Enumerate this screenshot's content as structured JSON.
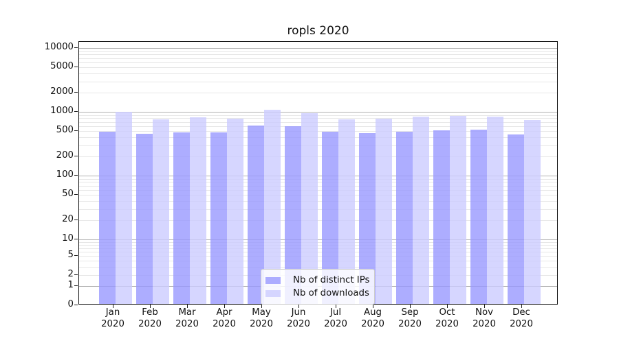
{
  "title": "ropls 2020",
  "chart_data": {
    "type": "bar",
    "title": "ropls 2020",
    "categories": [
      "Jan 2020",
      "Feb 2020",
      "Mar 2020",
      "Apr 2020",
      "May 2020",
      "Jun 2020",
      "Jul 2020",
      "Aug 2020",
      "Sep 2020",
      "Oct 2020",
      "Nov 2020",
      "Dec 2020"
    ],
    "series": [
      {
        "name": "Nb of distinct IPs",
        "color": "#9999ff",
        "values": [
          495,
          460,
          480,
          475,
          620,
          595,
          495,
          470,
          490,
          520,
          525,
          450
        ]
      },
      {
        "name": "Nb of downloads",
        "color": "#ccccff",
        "values": [
          1000,
          760,
          820,
          795,
          1080,
          960,
          765,
          795,
          840,
          865,
          845,
          745
        ]
      }
    ],
    "bar_alpha": 0.8,
    "xlabel": "",
    "ylabel": "",
    "yscale": "symlog",
    "y_ticks": [
      0,
      1,
      2,
      5,
      10,
      20,
      50,
      100,
      200,
      500,
      1000,
      2000,
      5000,
      10000
    ],
    "ylim": [
      0,
      12600
    ],
    "grid": "horizontal major+minor",
    "legend_position": "lower center"
  },
  "colors": {
    "grid_major": "#b0b0b0",
    "grid_minor": "#e7e7e7",
    "spine": "#1a1a1a",
    "text": "#111111",
    "legend_border": "#cccccc"
  }
}
